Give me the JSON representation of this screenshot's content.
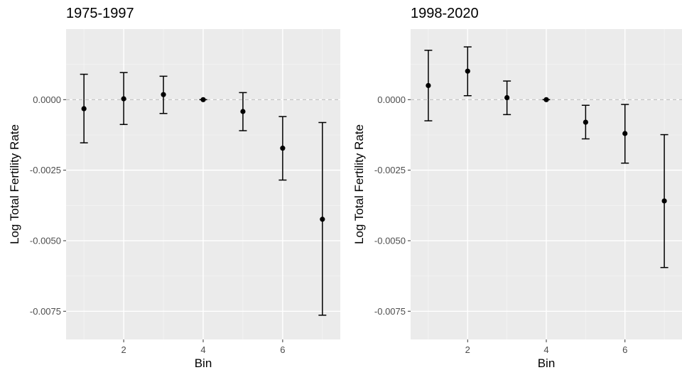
{
  "chart_data": [
    {
      "type": "scatter",
      "subtype": "point-with-errorbars",
      "title": "1975-1997",
      "xlabel": "Bin",
      "ylabel": "Log Total Fertility Rate",
      "xlim": [
        0.55,
        7.45
      ],
      "ylim": [
        -0.0085,
        0.0025
      ],
      "xticks": [
        2,
        4,
        6
      ],
      "xtick_labels": [
        "2",
        "4",
        "6"
      ],
      "yticks": [
        0,
        -0.0025,
        -0.005,
        -0.0075
      ],
      "ytick_labels": [
        "0.0000",
        "-0.0025",
        "-0.0050",
        "-0.0075"
      ],
      "reference_line": {
        "y": 0,
        "style": "dashed",
        "color": "#bdbdbd"
      },
      "points": [
        {
          "x": 1,
          "y": -0.00032,
          "ymin": -0.00153,
          "ymax": 0.0009
        },
        {
          "x": 2,
          "y": 3e-05,
          "ymin": -0.00088,
          "ymax": 0.00096
        },
        {
          "x": 3,
          "y": 0.00018,
          "ymin": -0.00049,
          "ymax": 0.00083
        },
        {
          "x": 4,
          "y": 0.0,
          "ymin": 0.0,
          "ymax": 0.0
        },
        {
          "x": 5,
          "y": -0.00042,
          "ymin": -0.0011,
          "ymax": 0.00025
        },
        {
          "x": 6,
          "y": -0.00172,
          "ymin": -0.00285,
          "ymax": -0.0006
        },
        {
          "x": 7,
          "y": -0.00424,
          "ymin": -0.00764,
          "ymax": -0.00081
        }
      ],
      "grid": true
    },
    {
      "type": "scatter",
      "subtype": "point-with-errorbars",
      "title": "1998-2020",
      "xlabel": "Bin",
      "ylabel": "Log Total Fertility Rate",
      "xlim": [
        0.55,
        7.45
      ],
      "ylim": [
        -0.0085,
        0.0025
      ],
      "xticks": [
        2,
        4,
        6
      ],
      "xtick_labels": [
        "2",
        "4",
        "6"
      ],
      "yticks": [
        0,
        -0.0025,
        -0.005,
        -0.0075
      ],
      "ytick_labels": [
        "0.0000",
        "-0.0025",
        "-0.0050",
        "-0.0075"
      ],
      "reference_line": {
        "y": 0,
        "style": "dashed",
        "color": "#bdbdbd"
      },
      "points": [
        {
          "x": 1,
          "y": 0.0005,
          "ymin": -0.00075,
          "ymax": 0.00175
        },
        {
          "x": 2,
          "y": 0.00101,
          "ymin": 0.00014,
          "ymax": 0.00187
        },
        {
          "x": 3,
          "y": 7e-05,
          "ymin": -0.00053,
          "ymax": 0.00066
        },
        {
          "x": 4,
          "y": 0.0,
          "ymin": 0.0,
          "ymax": 0.0
        },
        {
          "x": 5,
          "y": -0.0008,
          "ymin": -0.00139,
          "ymax": -0.0002
        },
        {
          "x": 6,
          "y": -0.0012,
          "ymin": -0.00225,
          "ymax": -0.00017
        },
        {
          "x": 7,
          "y": -0.00359,
          "ymin": -0.00595,
          "ymax": -0.00124
        }
      ],
      "grid": true
    }
  ],
  "colors": {
    "panel_background": "#ebebeb",
    "grid_major": "#ffffff",
    "grid_minor": "#f5f5f5",
    "points": "#000000",
    "tick_text": "#4d4d4d"
  }
}
